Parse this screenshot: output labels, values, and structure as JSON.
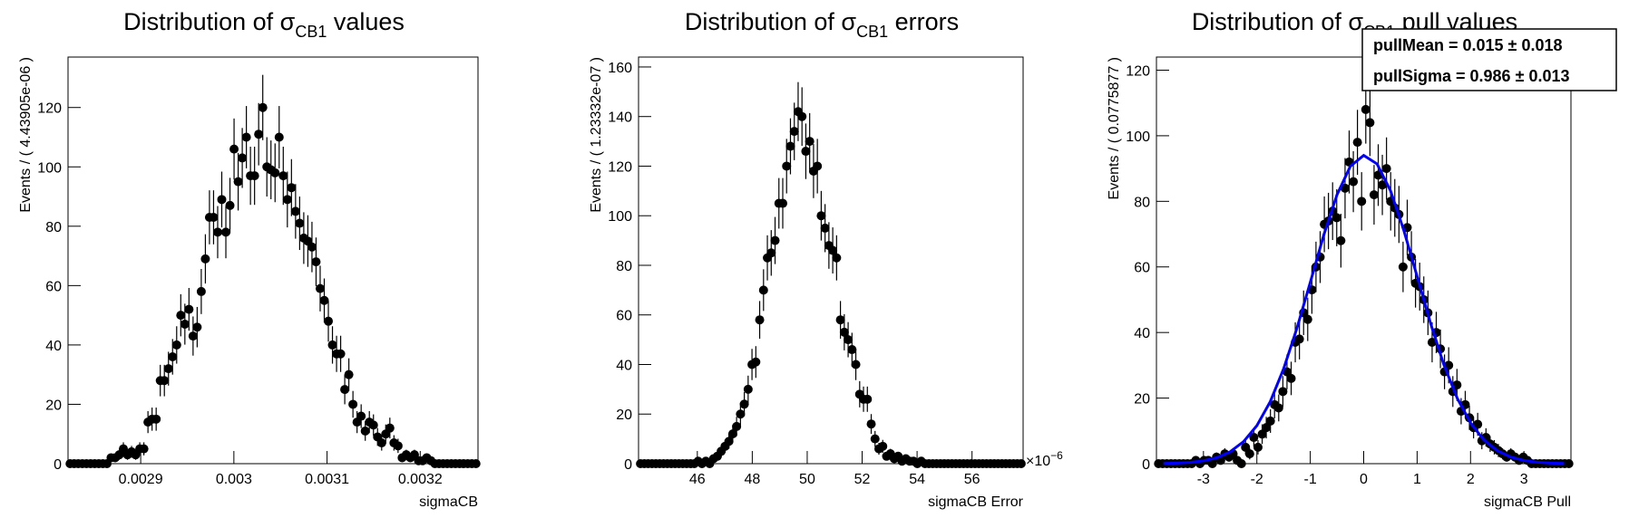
{
  "chart_data": [
    {
      "type": "scatter",
      "title": [
        "Distribution of σ",
        "CB1",
        " values"
      ],
      "x_label": "sigmaCB",
      "y_label": "Events / ( 4.43905e-06 )",
      "xlim": [
        0.002822,
        0.003262
      ],
      "xticks": [
        0.0029,
        0.003,
        0.0031,
        0.0032
      ],
      "ylim": [
        0,
        137
      ],
      "yticks": [
        0,
        20,
        40,
        60,
        80,
        100,
        120
      ],
      "color": "#000000",
      "x": [
        0.0028242,
        0.0028286,
        0.002833,
        0.0028374,
        0.0028418,
        0.0028462,
        0.0028506,
        0.002855,
        0.0028594,
        0.0028638,
        0.0028682,
        0.0028726,
        0.002877,
        0.0028814,
        0.0028858,
        0.0028902,
        0.0028946,
        0.002899,
        0.0029034,
        0.0029078,
        0.0029122,
        0.0029166,
        0.002921,
        0.0029254,
        0.0029298,
        0.0029342,
        0.0029386,
        0.002943,
        0.0029474,
        0.0029518,
        0.0029562,
        0.0029606,
        0.002965,
        0.0029694,
        0.0029738,
        0.0029782,
        0.0029826,
        0.002987,
        0.0029914,
        0.0029958,
        0.0030002,
        0.0030046,
        0.003009,
        0.0030134,
        0.0030178,
        0.0030222,
        0.0030266,
        0.003031,
        0.0030354,
        0.0030398,
        0.0030442,
        0.0030486,
        0.003053,
        0.0030574,
        0.0030618,
        0.0030662,
        0.0030706,
        0.003075,
        0.0030794,
        0.0030838,
        0.0030882,
        0.0030926,
        0.003097,
        0.0031014,
        0.0031058,
        0.0031102,
        0.0031146,
        0.003119,
        0.0031234,
        0.0031278,
        0.0031322,
        0.0031366,
        0.003141,
        0.0031454,
        0.0031498,
        0.0031542,
        0.0031586,
        0.003163,
        0.0031674,
        0.0031718,
        0.0031762,
        0.0031806,
        0.003185,
        0.0031894,
        0.0031938,
        0.0031982,
        0.0032026,
        0.003207,
        0.0032114,
        0.0032158,
        0.0032202,
        0.0032246,
        0.003229,
        0.0032334,
        0.0032378,
        0.0032422,
        0.0032466,
        0.003251,
        0.0032554,
        0.0032598
      ],
      "values": [
        0,
        0,
        0,
        0,
        0,
        0,
        0,
        0,
        0,
        0,
        2,
        2,
        3,
        5,
        3,
        4,
        3,
        5,
        5,
        14,
        15,
        15,
        28,
        28,
        32,
        36,
        40,
        50,
        47,
        52,
        43,
        46,
        58,
        69,
        83,
        83,
        78,
        89,
        78,
        87,
        106,
        95,
        103,
        110,
        97,
        97,
        111,
        120,
        100,
        99,
        98,
        110,
        97,
        89,
        93,
        85,
        81,
        76,
        75,
        73,
        68,
        59,
        55,
        48,
        40,
        37,
        37,
        25,
        30,
        20,
        14,
        16,
        11,
        14,
        13,
        9,
        7,
        10,
        12,
        7,
        6,
        2,
        3,
        2,
        3,
        1,
        1,
        2,
        1,
        0,
        0,
        0,
        0,
        0,
        0,
        0,
        0,
        0,
        0,
        0
      ],
      "errors": [
        0,
        0,
        0,
        0,
        0,
        0,
        0,
        0,
        0,
        0,
        1.4,
        1.4,
        1.7,
        2.2,
        1.7,
        2,
        1.7,
        2.2,
        2.2,
        3.7,
        3.9,
        3.9,
        5.3,
        5.3,
        5.7,
        6,
        6.3,
        7.1,
        6.9,
        7.2,
        6.6,
        6.8,
        7.6,
        8.3,
        9.1,
        9.1,
        8.8,
        9.4,
        8.8,
        9.3,
        10.3,
        9.7,
        10.1,
        10.5,
        9.8,
        9.8,
        10.5,
        11,
        10,
        9.9,
        9.9,
        10.5,
        9.8,
        9.4,
        9.6,
        9.2,
        9,
        8.7,
        8.7,
        8.5,
        8.2,
        7.7,
        7.4,
        6.9,
        6.3,
        6.1,
        6.1,
        5,
        5.5,
        4.5,
        3.7,
        4,
        3.3,
        3.7,
        3.6,
        3,
        2.6,
        3.2,
        3.5,
        2.6,
        2.4,
        1.4,
        1.7,
        1.4,
        1.7,
        1,
        1,
        1.4,
        1,
        0,
        0,
        0,
        0,
        0,
        0,
        0,
        0,
        0,
        0,
        0
      ]
    },
    {
      "type": "scatter",
      "title": [
        "Distribution of  σ",
        "CB1",
        " errors"
      ],
      "x_label": "sigmaCB Error",
      "y_label": "Events / ( 1.23332e-07 )",
      "x_multiplier": [
        "×10",
        "−6"
      ],
      "xlim": [
        43.86,
        57.86
      ],
      "xticks": [
        46,
        48,
        50,
        52,
        54,
        56
      ],
      "ylim": [
        0,
        164
      ],
      "yticks": [
        0,
        20,
        40,
        60,
        80,
        100,
        120,
        140,
        160
      ],
      "color": "#000000",
      "x": [
        43.93,
        44.07,
        44.21,
        44.35,
        44.49,
        44.63,
        44.77,
        44.91,
        45.05,
        45.19,
        45.33,
        45.47,
        45.61,
        45.75,
        45.89,
        46.03,
        46.17,
        46.31,
        46.45,
        46.59,
        46.73,
        46.87,
        47.01,
        47.15,
        47.29,
        47.43,
        47.57,
        47.71,
        47.85,
        47.99,
        48.13,
        48.27,
        48.41,
        48.55,
        48.69,
        48.83,
        48.97,
        49.11,
        49.25,
        49.39,
        49.53,
        49.67,
        49.81,
        49.95,
        50.09,
        50.23,
        50.37,
        50.51,
        50.65,
        50.79,
        50.93,
        51.07,
        51.21,
        51.35,
        51.49,
        51.63,
        51.77,
        51.91,
        52.05,
        52.19,
        52.33,
        52.47,
        52.61,
        52.75,
        52.89,
        53.03,
        53.17,
        53.31,
        53.45,
        53.59,
        53.73,
        53.87,
        54.01,
        54.15,
        54.29,
        54.43,
        54.57,
        54.71,
        54.85,
        54.99,
        55.13,
        55.27,
        55.41,
        55.55,
        55.69,
        55.83,
        55.97,
        56.11,
        56.25,
        56.39,
        56.53,
        56.67,
        56.81,
        56.95,
        57.09,
        57.23,
        57.37,
        57.51,
        57.65,
        57.79
      ],
      "values": [
        0,
        0,
        0,
        0,
        0,
        0,
        0,
        0,
        0,
        0,
        0,
        0,
        0,
        0,
        0,
        1,
        0,
        1,
        0,
        2,
        3,
        5,
        7,
        9,
        12,
        15,
        20,
        24,
        30,
        40,
        41,
        58,
        70,
        83,
        85,
        90,
        105,
        105,
        120,
        128,
        134,
        142,
        140,
        126,
        130,
        118,
        120,
        100,
        95,
        88,
        86,
        83,
        58,
        53,
        50,
        46,
        40,
        28,
        26,
        26,
        16,
        10,
        6,
        7,
        3,
        4,
        2,
        3,
        1,
        2,
        1,
        1,
        0,
        1,
        0,
        0,
        0,
        0,
        0,
        0,
        0,
        0,
        0,
        0,
        0,
        0,
        0,
        0,
        0,
        0,
        0,
        0,
        0,
        0,
        0,
        0,
        0,
        0,
        0,
        0
      ],
      "errors": [
        0,
        0,
        0,
        0,
        0,
        0,
        0,
        0,
        0,
        0,
        0,
        0,
        0,
        0,
        0,
        1,
        0,
        1,
        0,
        1.4,
        1.7,
        2.2,
        2.6,
        3,
        3.5,
        3.9,
        4.5,
        4.9,
        5.5,
        6.3,
        6.4,
        7.6,
        8.4,
        9.1,
        9.2,
        9.5,
        10.2,
        10.2,
        11,
        11.3,
        11.6,
        11.9,
        11.8,
        11.2,
        11.4,
        10.9,
        11,
        10,
        9.7,
        9.4,
        9.3,
        9.1,
        7.6,
        7.3,
        7.1,
        6.8,
        6.3,
        5.3,
        5.1,
        5.1,
        4,
        3.2,
        2.4,
        2.6,
        1.7,
        2,
        1.4,
        1.7,
        1,
        1.4,
        1,
        1,
        0,
        1,
        0,
        0,
        0,
        0,
        0,
        0,
        0,
        0,
        0,
        0,
        0,
        0,
        0,
        0,
        0,
        0,
        0,
        0,
        0,
        0,
        0,
        0,
        0,
        0,
        0,
        0
      ]
    },
    {
      "type": "scatter",
      "title": [
        "Distribution of  σ",
        "CB1",
        " pull values"
      ],
      "x_label": "sigmaCB Pull",
      "y_label": "Events / ( 0.0775877 )",
      "stats_box": [
        "pullMean =  0.015 ± 0.018",
        "pullSigma =  0.986 ± 0.013"
      ],
      "xlim": [
        -3.88,
        3.88
      ],
      "xticks": [
        -3,
        -2,
        -1,
        0,
        1,
        2,
        3
      ],
      "ylim": [
        0,
        124
      ],
      "yticks": [
        0,
        20,
        40,
        60,
        80,
        100,
        120
      ],
      "color": "#000000",
      "x": [
        -3.841,
        -3.764,
        -3.686,
        -3.608,
        -3.531,
        -3.453,
        -3.376,
        -3.298,
        -3.22,
        -3.143,
        -3.065,
        -2.988,
        -2.91,
        -2.833,
        -2.755,
        -2.677,
        -2.6,
        -2.522,
        -2.445,
        -2.367,
        -2.289,
        -2.212,
        -2.134,
        -2.057,
        -1.979,
        -1.901,
        -1.824,
        -1.746,
        -1.669,
        -1.591,
        -1.513,
        -1.436,
        -1.358,
        -1.281,
        -1.203,
        -1.125,
        -1.048,
        -0.97,
        -0.893,
        -0.815,
        -0.737,
        -0.66,
        -0.582,
        -0.505,
        -0.427,
        -0.349,
        -0.272,
        -0.194,
        -0.117,
        -0.039,
        0.039,
        0.117,
        0.194,
        0.272,
        0.349,
        0.427,
        0.505,
        0.582,
        0.66,
        0.737,
        0.815,
        0.893,
        0.97,
        1.048,
        1.125,
        1.203,
        1.281,
        1.358,
        1.436,
        1.513,
        1.591,
        1.669,
        1.746,
        1.824,
        1.901,
        1.979,
        2.057,
        2.134,
        2.212,
        2.289,
        2.367,
        2.445,
        2.522,
        2.6,
        2.677,
        2.755,
        2.833,
        2.91,
        2.988,
        3.065,
        3.143,
        3.22,
        3.298,
        3.376,
        3.453,
        3.531,
        3.608,
        3.686,
        3.764,
        3.841
      ],
      "values": [
        0,
        0,
        0,
        0,
        0,
        0,
        0,
        0,
        0,
        1,
        0,
        1,
        1,
        0,
        2,
        1,
        3,
        2,
        3,
        1,
        0,
        5,
        3,
        8,
        5,
        9,
        11,
        13,
        18,
        17,
        22,
        28,
        26,
        37,
        38,
        46,
        44,
        53,
        60,
        63,
        73,
        74,
        77,
        75,
        68,
        84,
        92,
        86,
        98,
        80,
        108,
        104,
        82,
        88,
        85,
        90,
        80,
        78,
        76,
        60,
        72,
        63,
        55,
        54,
        50,
        46,
        37,
        40,
        35,
        28,
        30,
        22,
        24,
        16,
        18,
        14,
        11,
        12,
        7,
        8,
        6,
        5,
        4,
        3,
        2,
        3,
        2,
        1,
        2,
        1,
        0,
        0,
        0,
        0,
        0,
        0,
        0,
        0,
        0,
        0
      ],
      "errors": [
        0,
        0,
        0,
        0,
        0,
        0,
        0,
        0,
        0,
        1,
        0,
        1,
        1,
        0,
        1.4,
        1,
        1.7,
        1.4,
        1.7,
        1,
        0,
        2.2,
        1.7,
        2.8,
        2.2,
        3,
        3.3,
        3.6,
        4.2,
        4.1,
        4.7,
        5.3,
        5.1,
        6.1,
        6.2,
        6.8,
        6.6,
        7.3,
        7.7,
        7.9,
        8.5,
        8.6,
        8.8,
        8.7,
        8.2,
        9.2,
        9.6,
        9.3,
        9.9,
        8.9,
        10.4,
        10.2,
        9.1,
        9.4,
        9.2,
        9.5,
        8.9,
        8.8,
        8.7,
        7.7,
        8.5,
        7.9,
        7.4,
        7.3,
        7.1,
        6.8,
        6.1,
        6.3,
        5.9,
        5.3,
        5.5,
        4.7,
        4.9,
        4,
        4.2,
        3.7,
        3.3,
        3.5,
        2.6,
        2.8,
        2.4,
        2.2,
        2,
        1.7,
        1.4,
        1.7,
        1.4,
        1,
        1.4,
        1,
        0,
        0,
        0,
        0,
        0,
        0,
        0,
        0,
        0,
        0
      ],
      "fit": {
        "color": "#0000ff",
        "x": [
          -3.75,
          -3.5,
          -3.25,
          -3,
          -2.75,
          -2.5,
          -2.25,
          -2,
          -1.75,
          -1.5,
          -1.25,
          -1,
          -0.75,
          -0.5,
          -0.25,
          0,
          0.25,
          0.5,
          0.75,
          1,
          1.25,
          1.5,
          1.75,
          2,
          2.25,
          2.5,
          2.75,
          3,
          3.25,
          3.5,
          3.75
        ],
        "values": [
          0.06,
          0.16,
          0.39,
          0.88,
          1.84,
          3.63,
          6.72,
          11.6,
          18.9,
          28.9,
          41.3,
          55.3,
          69.6,
          82,
          90.7,
          94,
          91.4,
          83.3,
          71.2,
          57.1,
          42.9,
          30.2,
          20,
          12.4,
          7.2,
          3.93,
          2,
          0.96,
          0.43,
          0.18,
          0.07
        ]
      }
    }
  ]
}
